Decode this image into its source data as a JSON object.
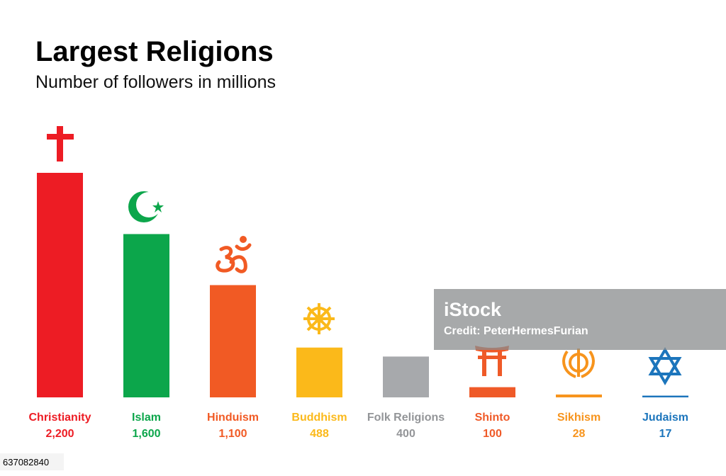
{
  "chart_data": {
    "type": "bar",
    "title": "Largest Religions",
    "subtitle": "Number of followers in millions",
    "categories": [
      "Christianity",
      "Islam",
      "Hinduism",
      "Buddhism",
      "Folk Religions",
      "Shinto",
      "Sikhism",
      "Judaism"
    ],
    "values": [
      2200,
      1600,
      1100,
      488,
      400,
      100,
      28,
      17
    ],
    "value_labels": [
      "2,200",
      "1,600",
      "1,100",
      "488",
      "400",
      "100",
      "28",
      "17"
    ],
    "colors": [
      "#ed1c24",
      "#0ca64b",
      "#f15a24",
      "#fbb91a",
      "#a7a9ac",
      "#ef5a28",
      "#f7941d",
      "#1c75bc"
    ]
  },
  "watermark": {
    "logo": "iStock",
    "credit": "Credit: PeterHermesFurian"
  },
  "image_id": "637082840"
}
